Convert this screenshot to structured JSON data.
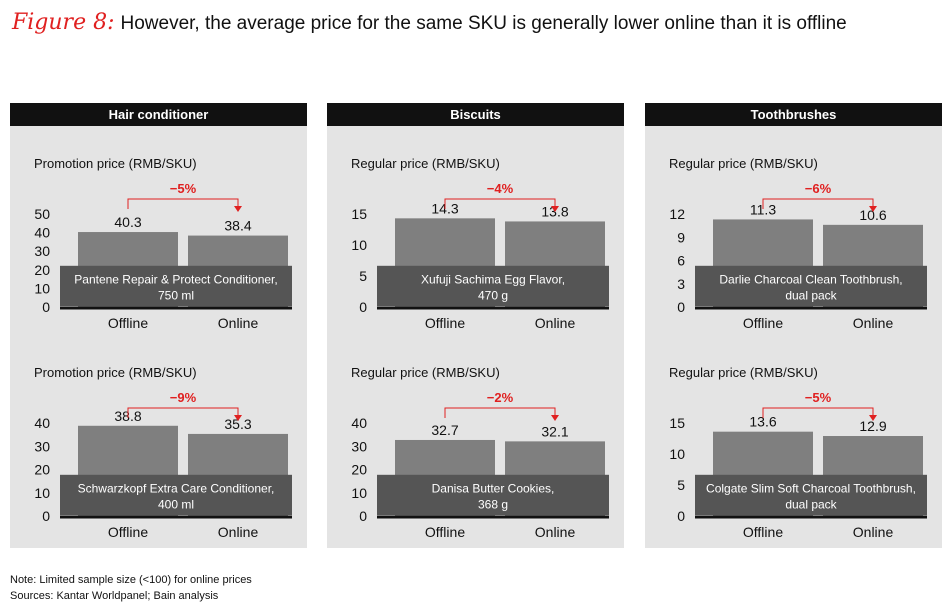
{
  "figure": {
    "label": "Figure 8:",
    "title": "However, the average price for the same SKU is generally lower online than it is offline"
  },
  "colors": {
    "bar": "#7f7f7f",
    "label_box": "#555555",
    "accent": "#e02020",
    "panel_bg": "#e4e4e4",
    "header_bg": "#111111"
  },
  "panels": [
    {
      "title": "Hair conditioner"
    },
    {
      "title": "Biscuits"
    },
    {
      "title": "Toothbrushes"
    }
  ],
  "chart_data": [
    {
      "type": "bar",
      "panel": 0,
      "ylabel": "Promotion price (RMB/SKU)",
      "categories": [
        "Offline",
        "Online"
      ],
      "values": [
        40.3,
        38.4
      ],
      "value_labels": [
        "40.3",
        "38.4"
      ],
      "change": "−5%",
      "ylim": [
        0,
        50
      ],
      "yticks": [
        0,
        10,
        20,
        30,
        40,
        50
      ],
      "product_lines": [
        "Pantene Repair & Protect Conditioner,",
        "750 ml"
      ]
    },
    {
      "type": "bar",
      "panel": 0,
      "ylabel": "Promotion price (RMB/SKU)",
      "categories": [
        "Offline",
        "Online"
      ],
      "values": [
        38.8,
        35.3
      ],
      "value_labels": [
        "38.8",
        "35.3"
      ],
      "change": "−9%",
      "ylim": [
        0,
        40
      ],
      "yticks": [
        0,
        10,
        20,
        30,
        40
      ],
      "product_lines": [
        "Schwarzkopf Extra Care Conditioner,",
        "400 ml"
      ]
    },
    {
      "type": "bar",
      "panel": 1,
      "ylabel": "Regular price (RMB/SKU)",
      "categories": [
        "Offline",
        "Online"
      ],
      "values": [
        14.3,
        13.8
      ],
      "value_labels": [
        "14.3",
        "13.8"
      ],
      "change": "−4%",
      "ylim": [
        0,
        15
      ],
      "yticks": [
        0,
        5,
        10,
        15
      ],
      "product_lines": [
        "Xufuji Sachima Egg Flavor,",
        "470 g"
      ]
    },
    {
      "type": "bar",
      "panel": 1,
      "ylabel": "Regular price (RMB/SKU)",
      "categories": [
        "Offline",
        "Online"
      ],
      "values": [
        32.7,
        32.1
      ],
      "value_labels": [
        "32.7",
        "32.1"
      ],
      "change": "−2%",
      "ylim": [
        0,
        40
      ],
      "yticks": [
        0,
        10,
        20,
        30,
        40
      ],
      "product_lines": [
        "Danisa Butter Cookies,",
        "368 g"
      ]
    },
    {
      "type": "bar",
      "panel": 2,
      "ylabel": "Regular price (RMB/SKU)",
      "categories": [
        "Offline",
        "Online"
      ],
      "values": [
        11.3,
        10.6
      ],
      "value_labels": [
        "11.3",
        "10.6"
      ],
      "change": "−6%",
      "ylim": [
        0,
        12
      ],
      "yticks": [
        0,
        3,
        6,
        9,
        12
      ],
      "product_lines": [
        "Darlie Charcoal Clean Toothbrush,",
        "dual pack"
      ]
    },
    {
      "type": "bar",
      "panel": 2,
      "ylabel": "Regular price (RMB/SKU)",
      "categories": [
        "Offline",
        "Online"
      ],
      "values": [
        13.6,
        12.9
      ],
      "value_labels": [
        "13.6",
        "12.9"
      ],
      "change": "−5%",
      "ylim": [
        0,
        15
      ],
      "yticks": [
        0,
        5,
        10,
        15
      ],
      "product_lines": [
        "Colgate Slim Soft Charcoal Toothbrush,",
        "dual pack"
      ]
    }
  ],
  "footer": {
    "note": "Note: Limited sample size (<100) for online prices",
    "sources": "Sources: Kantar Worldpanel; Bain analysis"
  }
}
